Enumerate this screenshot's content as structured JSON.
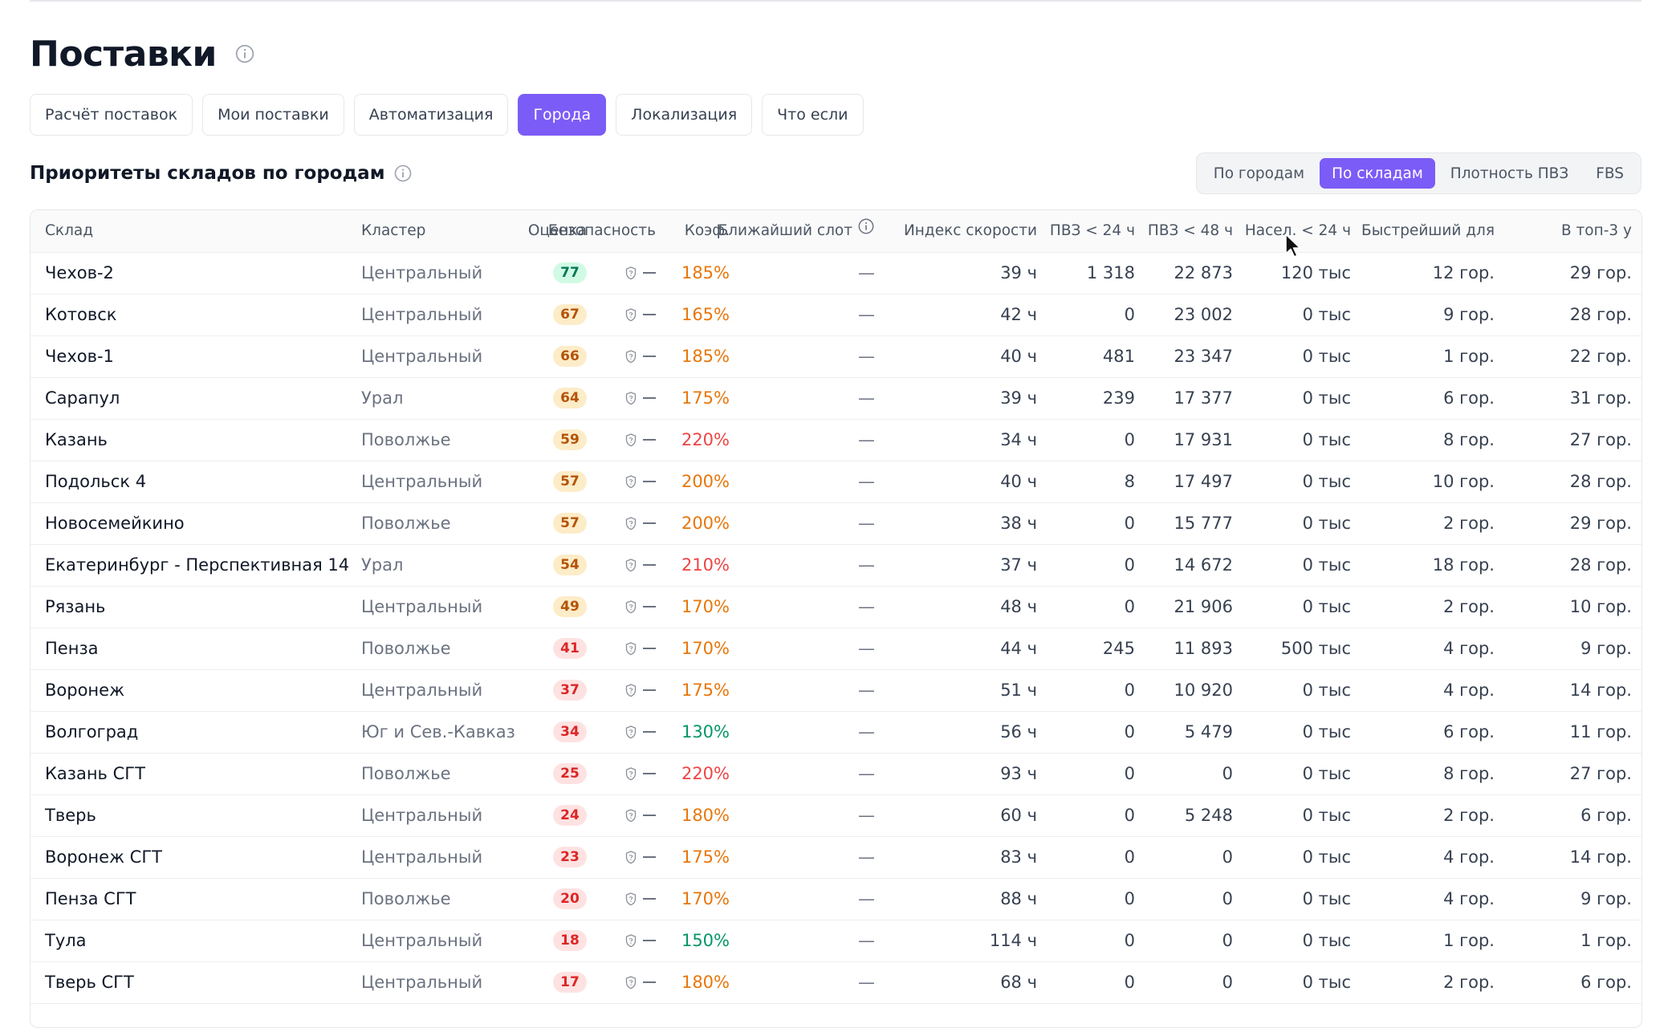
{
  "page": {
    "title": "Поставки"
  },
  "tabs": [
    "Расчёт поставок",
    "Мои поставки",
    "Автоматизация",
    "Города",
    "Локализация",
    "Что если"
  ],
  "active_tab": "Города",
  "section": {
    "title": "Приоритеты складов по городам"
  },
  "view_switch": {
    "items": [
      "По городам",
      "По складам",
      "Плотность ПВЗ",
      "FBS"
    ],
    "active": "По складам"
  },
  "table": {
    "headers": {
      "warehouse": "Склад",
      "cluster": "Кластер",
      "score": "Оценка",
      "security": "Безопасность",
      "coef": "Коэф.",
      "slot": "Ближайший слот",
      "speed": "Индекс скорости",
      "pvz24": "ПВЗ < 24 ч",
      "pvz48": "ПВЗ < 48 ч",
      "pop24": "Насел. < 24 ч",
      "fastest": "Быстрейший для",
      "top3": "В топ-3 у"
    },
    "rows": [
      {
        "warehouse": "Чехов-2",
        "cluster": "Центральный",
        "score": "77",
        "score_level": "green",
        "security": "—",
        "coef": "185%",
        "coef_level": "orange",
        "slot": "—",
        "speed": "39 ч",
        "pvz24": "1 318",
        "pvz48": "22 873",
        "pop24": "120 тыс",
        "fastest": "12 гор.",
        "top3": "29 гор."
      },
      {
        "warehouse": "Котовск",
        "cluster": "Центральный",
        "score": "67",
        "score_level": "orange",
        "security": "—",
        "coef": "165%",
        "coef_level": "orange",
        "slot": "—",
        "speed": "42 ч",
        "pvz24": "0",
        "pvz48": "23 002",
        "pop24": "0 тыс",
        "fastest": "9 гор.",
        "top3": "28 гор."
      },
      {
        "warehouse": "Чехов-1",
        "cluster": "Центральный",
        "score": "66",
        "score_level": "orange",
        "security": "—",
        "coef": "185%",
        "coef_level": "orange",
        "slot": "—",
        "speed": "40 ч",
        "pvz24": "481",
        "pvz48": "23 347",
        "pop24": "0 тыс",
        "fastest": "1 гор.",
        "top3": "22 гор."
      },
      {
        "warehouse": "Сарапул",
        "cluster": "Урал",
        "score": "64",
        "score_level": "orange",
        "security": "—",
        "coef": "175%",
        "coef_level": "orange",
        "slot": "—",
        "speed": "39 ч",
        "pvz24": "239",
        "pvz48": "17 377",
        "pop24": "0 тыс",
        "fastest": "6 гор.",
        "top3": "31 гор."
      },
      {
        "warehouse": "Казань",
        "cluster": "Поволжье",
        "score": "59",
        "score_level": "orange",
        "security": "—",
        "coef": "220%",
        "coef_level": "red",
        "slot": "—",
        "speed": "34 ч",
        "pvz24": "0",
        "pvz48": "17 931",
        "pop24": "0 тыс",
        "fastest": "8 гор.",
        "top3": "27 гор."
      },
      {
        "warehouse": "Подольск 4",
        "cluster": "Центральный",
        "score": "57",
        "score_level": "orange",
        "security": "—",
        "coef": "200%",
        "coef_level": "orange",
        "slot": "—",
        "speed": "40 ч",
        "pvz24": "8",
        "pvz48": "17 497",
        "pop24": "0 тыс",
        "fastest": "10 гор.",
        "top3": "28 гор."
      },
      {
        "warehouse": "Новосемейкино",
        "cluster": "Поволжье",
        "score": "57",
        "score_level": "orange",
        "security": "—",
        "coef": "200%",
        "coef_level": "orange",
        "slot": "—",
        "speed": "38 ч",
        "pvz24": "0",
        "pvz48": "15 777",
        "pop24": "0 тыс",
        "fastest": "2 гор.",
        "top3": "29 гор."
      },
      {
        "warehouse": "Екатеринбург - Перспективная 14",
        "cluster": "Урал",
        "score": "54",
        "score_level": "orange",
        "security": "—",
        "coef": "210%",
        "coef_level": "red",
        "slot": "—",
        "speed": "37 ч",
        "pvz24": "0",
        "pvz48": "14 672",
        "pop24": "0 тыс",
        "fastest": "18 гор.",
        "top3": "28 гор."
      },
      {
        "warehouse": "Рязань",
        "cluster": "Центральный",
        "score": "49",
        "score_level": "orange",
        "security": "—",
        "coef": "170%",
        "coef_level": "orange",
        "slot": "—",
        "speed": "48 ч",
        "pvz24": "0",
        "pvz48": "21 906",
        "pop24": "0 тыс",
        "fastest": "2 гор.",
        "top3": "10 гор."
      },
      {
        "warehouse": "Пенза",
        "cluster": "Поволжье",
        "score": "41",
        "score_level": "red",
        "security": "—",
        "coef": "170%",
        "coef_level": "orange",
        "slot": "—",
        "speed": "44 ч",
        "pvz24": "245",
        "pvz48": "11 893",
        "pop24": "500 тыс",
        "fastest": "4 гор.",
        "top3": "9 гор."
      },
      {
        "warehouse": "Воронеж",
        "cluster": "Центральный",
        "score": "37",
        "score_level": "red",
        "security": "—",
        "coef": "175%",
        "coef_level": "orange",
        "slot": "—",
        "speed": "51 ч",
        "pvz24": "0",
        "pvz48": "10 920",
        "pop24": "0 тыс",
        "fastest": "4 гор.",
        "top3": "14 гор."
      },
      {
        "warehouse": "Волгоград",
        "cluster": "Юг и Сев.-Кавказ",
        "score": "34",
        "score_level": "red",
        "security": "—",
        "coef": "130%",
        "coef_level": "green",
        "slot": "—",
        "speed": "56 ч",
        "pvz24": "0",
        "pvz48": "5 479",
        "pop24": "0 тыс",
        "fastest": "6 гор.",
        "top3": "11 гор."
      },
      {
        "warehouse": "Казань СГТ",
        "cluster": "Поволжье",
        "score": "25",
        "score_level": "red",
        "security": "—",
        "coef": "220%",
        "coef_level": "red",
        "slot": "—",
        "speed": "93 ч",
        "pvz24": "0",
        "pvz48": "0",
        "pop24": "0 тыс",
        "fastest": "8 гор.",
        "top3": "27 гор."
      },
      {
        "warehouse": "Тверь",
        "cluster": "Центральный",
        "score": "24",
        "score_level": "red",
        "security": "—",
        "coef": "180%",
        "coef_level": "orange",
        "slot": "—",
        "speed": "60 ч",
        "pvz24": "0",
        "pvz48": "5 248",
        "pop24": "0 тыс",
        "fastest": "2 гор.",
        "top3": "6 гор."
      },
      {
        "warehouse": "Воронеж СГТ",
        "cluster": "Центральный",
        "score": "23",
        "score_level": "red",
        "security": "—",
        "coef": "175%",
        "coef_level": "orange",
        "slot": "—",
        "speed": "83 ч",
        "pvz24": "0",
        "pvz48": "0",
        "pop24": "0 тыс",
        "fastest": "4 гор.",
        "top3": "14 гор."
      },
      {
        "warehouse": "Пенза СГТ",
        "cluster": "Поволжье",
        "score": "20",
        "score_level": "red",
        "security": "—",
        "coef": "170%",
        "coef_level": "orange",
        "slot": "—",
        "speed": "88 ч",
        "pvz24": "0",
        "pvz48": "0",
        "pop24": "0 тыс",
        "fastest": "4 гор.",
        "top3": "9 гор."
      },
      {
        "warehouse": "Тула",
        "cluster": "Центральный",
        "score": "18",
        "score_level": "red",
        "security": "—",
        "coef": "150%",
        "coef_level": "green",
        "slot": "—",
        "speed": "114 ч",
        "pvz24": "0",
        "pvz48": "0",
        "pop24": "0 тыс",
        "fastest": "1 гор.",
        "top3": "1 гор."
      },
      {
        "warehouse": "Тверь СГТ",
        "cluster": "Центральный",
        "score": "17",
        "score_level": "red",
        "security": "—",
        "coef": "180%",
        "coef_level": "orange",
        "slot": "—",
        "speed": "68 ч",
        "pvz24": "0",
        "pvz48": "0",
        "pop24": "0 тыс",
        "fastest": "2 гор.",
        "top3": "6 гор."
      }
    ]
  },
  "colors": {
    "accent": "#7c5cf6",
    "orange": "#e8760a",
    "red": "#ef4444",
    "green": "#059669"
  },
  "icons": {
    "info": "info-circle-icon",
    "security": "shield-icon",
    "cursor": "mouse-pointer-icon"
  }
}
